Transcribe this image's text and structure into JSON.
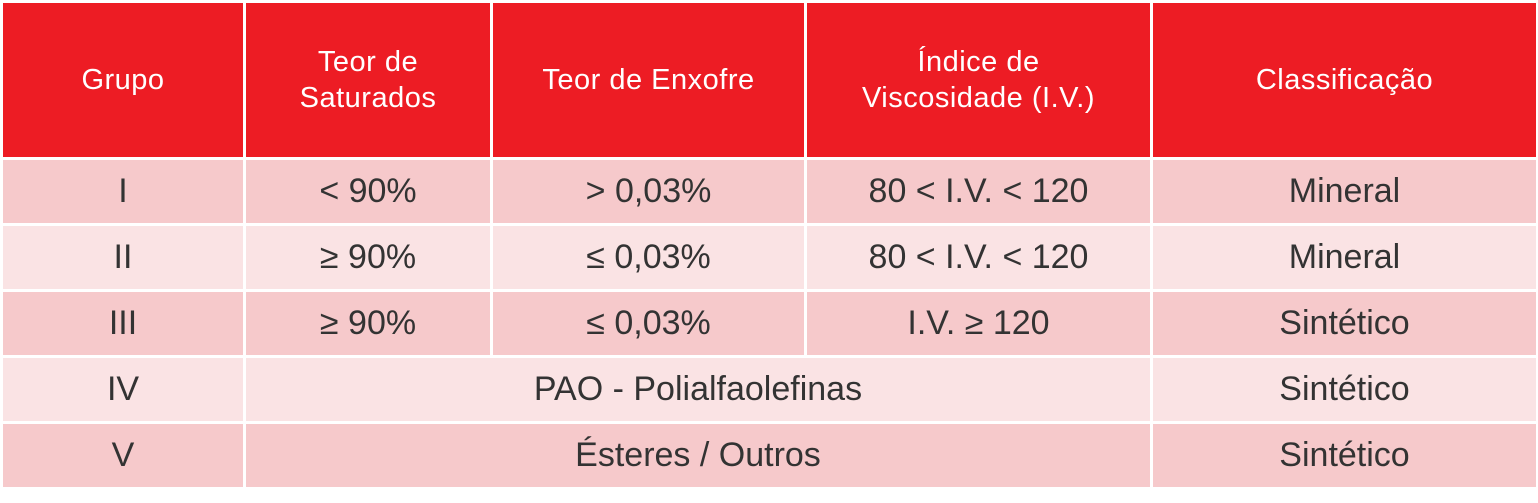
{
  "table": {
    "header": [
      [
        "Grupo"
      ],
      [
        "Teor de",
        "Saturados"
      ],
      [
        "Teor de Enxofre"
      ],
      [
        "Índice de",
        "Viscosidade (I.V.)"
      ],
      [
        "Classificação"
      ]
    ],
    "rows": [
      [
        "I",
        "< 90%",
        "> 0,03%",
        "80 < I.V. < 120",
        "Mineral"
      ],
      [
        "II",
        "≥ 90%",
        "≤ 0,03%",
        "80 < I.V. < 120",
        "Mineral"
      ],
      [
        "III",
        "≥ 90%",
        "≤ 0,03%",
        "I.V. ≥ 120",
        "Sintético"
      ],
      [
        "IV",
        "PAO - Polialfaolefinas",
        "Sintético"
      ],
      [
        "V",
        "Ésteres / Outros",
        "Sintético"
      ]
    ]
  }
}
